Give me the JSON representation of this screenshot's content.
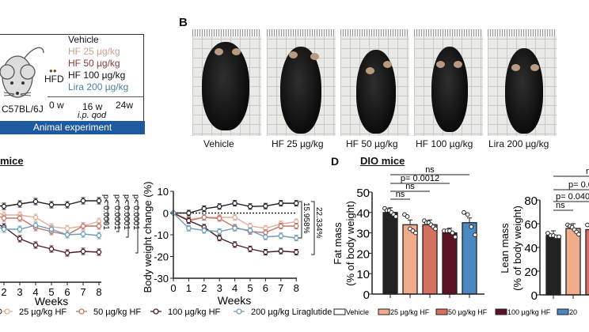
{
  "panel_a": {
    "groups": [
      {
        "label": "Vehicle",
        "color": "#111111"
      },
      {
        "label": "HF 25 µg/kg",
        "color": "#c9a08e"
      },
      {
        "label": "HF 50 µg/kg",
        "color": "#8b3a3a"
      },
      {
        "label": "HF 100 µg/kg",
        "color": "#111111"
      },
      {
        "label": "Lira 200 µg/kg",
        "color": "#4a7fa8"
      }
    ],
    "diet": "HFD",
    "strain": "C57BL/6J",
    "timepoints": [
      "0 w",
      "16 w",
      "24w"
    ],
    "dosing": "i.p. qod",
    "banner": "Animal experiment"
  },
  "panel_b": {
    "label": "B",
    "photos": [
      "Vehicle",
      "HF 25 µg/kg",
      "HF 50 µg/kg",
      "HF 100 µg/kg",
      "Lira 200 µg/kg"
    ]
  },
  "panel_c": {
    "title_fragment": "mice"
  },
  "panel_d": {
    "label": "D",
    "title": "DIO mice"
  },
  "legend_c": [
    "25 µg/kg HF",
    "50 µg/kg HF",
    "100 µg/kg HF",
    "200 µg/kg Liraglutide"
  ],
  "legend_d": [
    "Vehicle",
    "25 µg/kg HF",
    "50 µg/kg HF",
    "100 µg/kg HF",
    "20"
  ],
  "colors": {
    "vehicle": "#222222",
    "hf25": "#f0ab8a",
    "hf50": "#d6705f",
    "hf100": "#5c1224",
    "lira": "#4a88c2",
    "line_hf25": "#e3ad98",
    "line_hf50": "#c47566",
    "line_hf100": "#4a1c2a",
    "line_lira": "#6f9db8"
  },
  "chart_data": [
    {
      "type": "line",
      "xlabel": "Weeks",
      "ylabel": "",
      "x": [
        2,
        3,
        4,
        5,
        6,
        7,
        8
      ],
      "series": [
        {
          "name": "Vehicle",
          "key": "vehicle",
          "values": [
            49.4,
            50,
            50.6,
            49.8,
            49.8,
            50.8,
            50.8
          ]
        },
        {
          "name": "25 µg/kg HF",
          "key": "line_hf25",
          "values": [
            47.2,
            47.2,
            46.6,
            44.2,
            43.8,
            44.4,
            45.6
          ]
        },
        {
          "name": "50 µg/kg HF",
          "key": "line_hf50",
          "values": [
            46.4,
            46.4,
            44,
            43,
            42.2,
            44.4,
            44.4
          ]
        },
        {
          "name": "100 µg/kg HF",
          "key": "line_hf100",
          "values": [
            44.2,
            41.2,
            39.6,
            38.6,
            37.6,
            38,
            37.8
          ]
        },
        {
          "name": "200 µg/kg Liraglutide",
          "key": "line_lira",
          "values": [
            43.6,
            43.6,
            44.6,
            43.6,
            42.2,
            42.4,
            42
          ]
        }
      ],
      "xticks": [
        "2",
        "3",
        "4",
        "5",
        "6",
        "7",
        "8"
      ],
      "annotations": [
        "p< 0.0001",
        "p< 0.0001",
        "p< 0.0001",
        "p< 0.0001"
      ]
    },
    {
      "type": "line",
      "xlabel": "Weeks",
      "ylabel": "Body weight change (%)",
      "x": [
        0,
        1,
        2,
        3,
        4,
        5,
        6,
        7,
        8
      ],
      "xlim": [
        0,
        8
      ],
      "ylim": [
        -30,
        10
      ],
      "yticks": [
        "10",
        "0",
        "-10",
        "-20",
        "-30"
      ],
      "xticks": [
        "0",
        "1",
        "2",
        "3",
        "4",
        "5",
        "6",
        "7",
        "8"
      ],
      "series": [
        {
          "name": "Vehicle",
          "key": "vehicle",
          "values": [
            0,
            0,
            2,
            3,
            4.5,
            3,
            3.2,
            4.5,
            4.5
          ]
        },
        {
          "name": "25 µg/kg HF",
          "key": "line_hf25",
          "values": [
            0,
            -3,
            -2,
            -2,
            -2,
            -6,
            -7,
            -5,
            -4
          ]
        },
        {
          "name": "50 µg/kg HF",
          "key": "line_hf50",
          "values": [
            0,
            -3.5,
            -2,
            -2.5,
            -6.5,
            -8.5,
            -9,
            -6,
            -6
          ]
        },
        {
          "name": "100 µg/kg HF",
          "key": "line_hf100",
          "values": [
            0,
            -3.5,
            -6.5,
            -11.5,
            -14.5,
            -16.5,
            -18,
            -17.5,
            -18
          ]
        },
        {
          "name": "200 µg/kg Liraglutide",
          "key": "line_lira",
          "values": [
            0,
            -7,
            -8,
            -8.5,
            -7,
            -8,
            -11,
            -10.5,
            -11.5
          ]
        }
      ],
      "annotations": [
        "15.958%",
        "22.334%"
      ]
    },
    {
      "type": "bar",
      "ylabel_lines": [
        "Fat mass",
        "(% of body weight)"
      ],
      "ylim": [
        0,
        50
      ],
      "yticks": [
        "0",
        "10",
        "20",
        "30",
        "40",
        "50"
      ],
      "categories": [
        "Vehicle",
        "25 µg/kg HF",
        "50 µg/kg HF",
        "100 µg/kg HF",
        "200 µg/kg Liraglutide"
      ],
      "keys": [
        "vehicle",
        "hf25",
        "hf50",
        "hf100",
        "lira"
      ],
      "values": [
        40,
        34,
        34,
        30,
        35
      ],
      "points": [
        [
          42,
          41,
          41,
          40,
          39,
          38
        ],
        [
          39,
          38,
          32,
          31,
          30
        ],
        [
          36,
          35,
          35,
          34,
          33,
          32
        ],
        [
          31,
          31,
          31,
          30,
          28
        ],
        [
          40,
          39,
          33,
          29
        ]
      ],
      "sig": [
        {
          "label": "ns",
          "to": 1
        },
        {
          "label": "ns",
          "to": 2
        },
        {
          "label": "p= 0.0012",
          "to": 3
        },
        {
          "label": "ns",
          "to": 4
        }
      ]
    },
    {
      "type": "bar",
      "ylabel_lines": [
        "Lean mass",
        "(% of body weight)"
      ],
      "ylim": [
        0,
        80
      ],
      "yticks": [
        "0",
        "20",
        "40",
        "60",
        "80"
      ],
      "categories": [
        "Vehicle",
        "25 µg/kg HF",
        "50 µg/kg HF"
      ],
      "keys": [
        "vehicle",
        "hf25",
        "hf50"
      ],
      "values": [
        50,
        56,
        55
      ],
      "points": [
        [
          52,
          50,
          50,
          49,
          49
        ],
        [
          59,
          58,
          57,
          55,
          53,
          51
        ],
        [
          59,
          57,
          55
        ]
      ],
      "sig": [
        {
          "label": "ns",
          "to": 1
        },
        {
          "label": "p= 0.040",
          "to": 2
        },
        {
          "label": "p= 0.0",
          "to": 3
        },
        {
          "label": "n",
          "to": 4
        }
      ]
    }
  ]
}
